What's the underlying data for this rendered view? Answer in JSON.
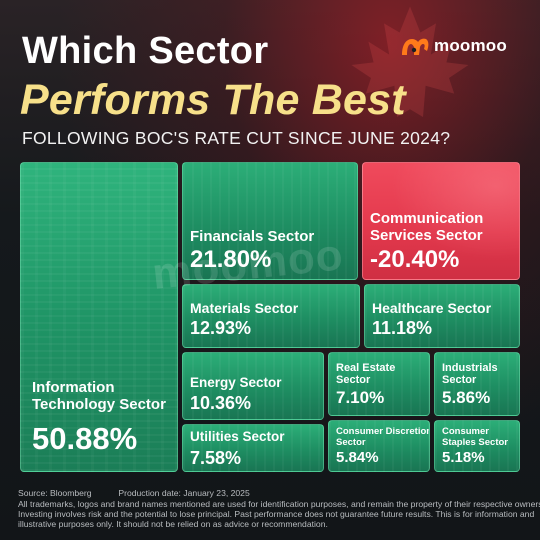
{
  "title": {
    "line1": "Which Sector",
    "line2": "Performs The Best",
    "subtitle": "FOLLOWING BOC'S RATE CUT SINCE JUNE 2024?"
  },
  "brand": {
    "name": "moomoo",
    "logo_color": "#ff7a1a"
  },
  "colors": {
    "positive": "#23a06c",
    "negative": "#e53e52",
    "title_accent": "#f7e08a"
  },
  "chart_data": {
    "type": "treemap",
    "unit": "%",
    "items": [
      {
        "label": "Information Technology Sector",
        "value": 50.88,
        "display": "50.88%"
      },
      {
        "label": "Financials Sector",
        "value": 21.8,
        "display": "21.80%"
      },
      {
        "label": "Communication Services Sector",
        "value": -20.4,
        "display": "-20.40%"
      },
      {
        "label": "Materials Sector",
        "value": 12.93,
        "display": "12.93%"
      },
      {
        "label": "Healthcare Sector",
        "value": 11.18,
        "display": "11.18%"
      },
      {
        "label": "Energy Sector",
        "value": 10.36,
        "display": "10.36%"
      },
      {
        "label": "Real Estate Sector",
        "value": 7.1,
        "display": "7.10%"
      },
      {
        "label": "Industrials Sector",
        "value": 5.86,
        "display": "5.86%"
      },
      {
        "label": "Utilities Sector",
        "value": 7.58,
        "display": "7.58%"
      },
      {
        "label": "Consumer Discretionary Sector",
        "value": 5.84,
        "display": "5.84%"
      },
      {
        "label": "Consumer Staples Sector",
        "value": 5.18,
        "display": "5.18%"
      }
    ]
  },
  "footer": {
    "source": "Source: Bloomberg",
    "production_date": "Production date: January 23, 2025",
    "disclaimer_1": "All trademarks, logos and brand names mentioned are used for identification purposes, and remain the property of their respective owners.",
    "disclaimer_2": "Investing involves risk and the potential to lose principal. Past performance does not guarantee future results. This is for information and",
    "disclaimer_3": "illustrative purposes only. It should not be relied on as advice or recommendation."
  }
}
